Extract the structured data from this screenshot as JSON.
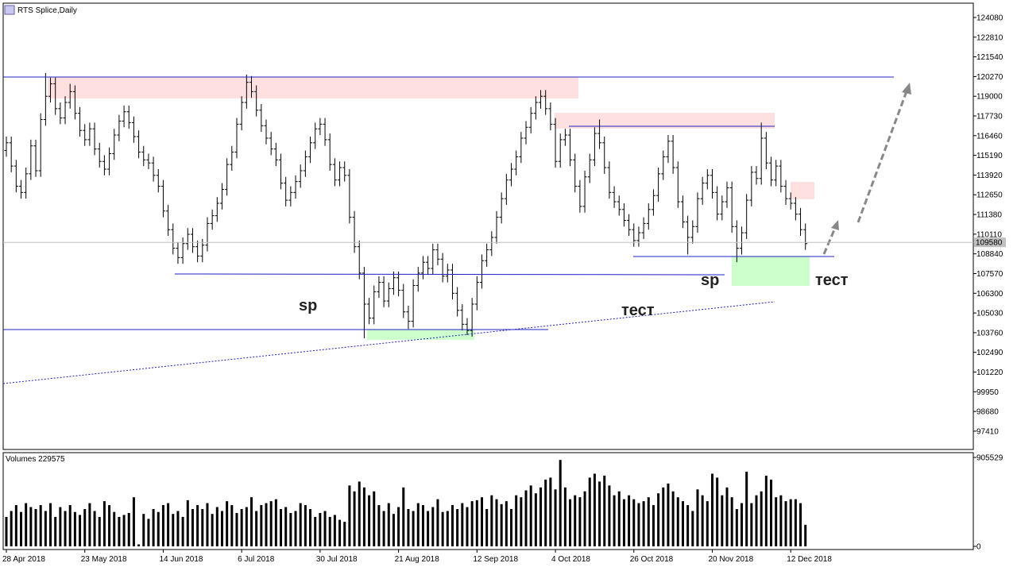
{
  "chart_data": [
    {
      "type": "ohlc",
      "title": "RTS Splice,Daily",
      "categories": [
        "28 Apr 2018",
        null,
        null,
        null,
        null,
        null,
        null,
        null,
        null,
        null,
        null,
        null,
        null,
        null,
        null,
        null,
        "23 May 2018",
        null,
        null,
        null,
        null,
        null,
        null,
        null,
        null,
        null,
        null,
        null,
        null,
        null,
        null,
        null,
        "14 Jun 2018",
        null,
        null,
        null,
        null,
        null,
        null,
        null,
        null,
        null,
        null,
        null,
        null,
        null,
        null,
        null,
        "6 Jul 2018",
        null,
        null,
        null,
        null,
        null,
        null,
        null,
        null,
        null,
        null,
        null,
        null,
        null,
        null,
        null,
        "30 Jul 2018",
        null,
        null,
        null,
        null,
        null,
        null,
        null,
        null,
        null,
        null,
        null,
        null,
        null,
        null,
        null,
        "21 Aug 2018",
        null,
        null,
        null,
        null,
        null,
        null,
        null,
        null,
        null,
        null,
        null,
        null,
        null,
        null,
        null,
        "12 Sep 2018",
        null,
        null,
        null,
        null,
        null,
        null,
        null,
        null,
        null,
        null,
        null,
        null,
        null,
        null,
        null,
        "4 Oct 2018",
        null,
        null,
        null,
        null,
        null,
        null,
        null,
        null,
        null,
        null,
        null,
        null,
        null,
        null,
        null,
        "26 Oct 2018",
        null,
        null,
        null,
        null,
        null,
        null,
        null,
        null,
        null,
        null,
        null,
        null,
        null,
        null,
        null,
        "20 Nov 2018",
        null,
        null,
        null,
        null,
        null,
        null,
        null,
        null,
        null,
        null,
        null,
        null,
        null,
        null,
        null,
        "12 Dec 2018",
        null,
        null,
        null
      ],
      "open": [
        115500,
        116000,
        114500,
        113200,
        112800,
        114000,
        115800,
        114200,
        117500,
        119000,
        119800,
        118200,
        117600,
        118600,
        119300,
        117900,
        116800,
        116200,
        116900,
        115600,
        114800,
        114300,
        115300,
        116500,
        117400,
        118000,
        117300,
        116400,
        115400,
        114900,
        114700,
        113900,
        113200,
        111600,
        110400,
        109200,
        108600,
        109500,
        110100,
        109300,
        108700,
        109400,
        110800,
        111300,
        112100,
        113000,
        114600,
        115400,
        117200,
        118600,
        119900,
        119300,
        118100,
        117100,
        116300,
        115600,
        114900,
        113400,
        112300,
        112800,
        113500,
        114200,
        115100,
        116000,
        116900,
        117200,
        116200,
        114600,
        113600,
        114400,
        113900,
        111200,
        109300,
        107600,
        105600,
        104700,
        106400,
        107000,
        105800,
        106600,
        107300,
        106500,
        105100,
        104500,
        106800,
        107600,
        108300,
        107900,
        109100,
        108500,
        107400,
        107800,
        106300,
        105200,
        104300,
        103900,
        105600,
        107000,
        108400,
        109100,
        109900,
        111200,
        112400,
        113600,
        114300,
        115100,
        116300,
        117000,
        117900,
        118600,
        119000,
        118200,
        117200,
        114800,
        116200,
        116500,
        114900,
        113200,
        111900,
        113800,
        114900,
        116600,
        116000,
        114400,
        112800,
        112200,
        111700,
        111000,
        110400,
        109700,
        110200,
        110800,
        111700,
        112600,
        114000,
        115100,
        116100,
        114400,
        112200,
        110900,
        109900,
        110600,
        112400,
        113400,
        113900,
        112800,
        111400,
        112200,
        113100,
        110600,
        109200,
        110200,
        112300,
        114100,
        113700,
        116300,
        114700,
        113600,
        114500,
        113200,
        112400,
        112100,
        111400,
        110400
      ],
      "high": [
        116400,
        116400,
        114900,
        113600,
        114400,
        116200,
        116200,
        117900,
        120500,
        120200,
        120200,
        118600,
        119000,
        119800,
        119700,
        118300,
        117200,
        117300,
        117300,
        116000,
        115200,
        115700,
        116900,
        117800,
        118400,
        118400,
        117700,
        116800,
        115800,
        115300,
        115100,
        114300,
        113600,
        112000,
        110800,
        109600,
        109900,
        110500,
        110500,
        109700,
        109800,
        111200,
        111700,
        112500,
        113400,
        115000,
        115800,
        117600,
        119000,
        120400,
        120300,
        119700,
        118500,
        117500,
        116700,
        116000,
        115300,
        113800,
        113200,
        113900,
        114600,
        115500,
        116400,
        117300,
        117600,
        117600,
        116600,
        115000,
        114800,
        114800,
        114300,
        111600,
        109700,
        108000,
        106000,
        106800,
        107400,
        107400,
        107000,
        107700,
        107700,
        106900,
        105500,
        107200,
        108000,
        108700,
        108700,
        109500,
        109500,
        108900,
        108200,
        108200,
        106700,
        105600,
        104700,
        106000,
        107400,
        108800,
        109500,
        110300,
        111600,
        112800,
        114000,
        114700,
        115500,
        116700,
        117400,
        118300,
        119000,
        119400,
        119400,
        118600,
        117600,
        116600,
        116900,
        116900,
        115300,
        113600,
        114200,
        115300,
        117000,
        117500,
        116400,
        114800,
        113200,
        112600,
        112100,
        111400,
        110800,
        110600,
        111200,
        112100,
        113000,
        114400,
        115500,
        116500,
        116500,
        114800,
        112600,
        111300,
        111000,
        112800,
        113800,
        114300,
        114300,
        113200,
        112600,
        113500,
        113500,
        111000,
        110600,
        112700,
        114500,
        114500,
        117300,
        116700,
        115100,
        114900,
        114900,
        113600,
        112800,
        112500,
        111800,
        110800
      ],
      "low": [
        115100,
        114100,
        112800,
        112400,
        112400,
        113600,
        113800,
        113800,
        117100,
        118600,
        117800,
        117200,
        117200,
        118200,
        117500,
        116400,
        115800,
        115800,
        115200,
        114400,
        113900,
        113900,
        114900,
        116100,
        117000,
        116900,
        116000,
        115000,
        114500,
        114300,
        113500,
        112800,
        111200,
        110000,
        108800,
        108200,
        108200,
        109100,
        108900,
        108300,
        108300,
        109000,
        110400,
        110900,
        111700,
        112600,
        114200,
        115000,
        116800,
        118200,
        118900,
        117700,
        116700,
        115900,
        115200,
        114500,
        113000,
        111900,
        111900,
        112400,
        113100,
        113800,
        114700,
        115600,
        116500,
        115800,
        114200,
        113200,
        113200,
        113500,
        110800,
        108900,
        107200,
        103400,
        104300,
        104300,
        106000,
        105400,
        105400,
        106200,
        106100,
        104700,
        104000,
        104100,
        106400,
        107200,
        107500,
        107500,
        108100,
        107000,
        107000,
        105900,
        104800,
        103900,
        103600,
        103500,
        105200,
        106600,
        108000,
        108700,
        109500,
        110800,
        112000,
        113200,
        113900,
        114700,
        115900,
        116600,
        117500,
        118200,
        117800,
        116800,
        114400,
        114400,
        115800,
        114500,
        112800,
        111500,
        111500,
        113400,
        114500,
        115600,
        114000,
        112400,
        111800,
        111300,
        110600,
        110000,
        109300,
        109300,
        109800,
        110400,
        111300,
        112200,
        113600,
        114700,
        114000,
        111800,
        110500,
        108800,
        109500,
        110200,
        112000,
        113000,
        112400,
        111000,
        111000,
        111800,
        110200,
        108300,
        108800,
        109800,
        111900,
        113300,
        113300,
        114300,
        113200,
        113200,
        112800,
        112000,
        111700,
        111000,
        110000,
        109100
      ],
      "close": [
        116000,
        114500,
        113200,
        112800,
        114000,
        115800,
        114200,
        117500,
        119000,
        119800,
        118200,
        117600,
        118600,
        119300,
        117900,
        116800,
        116200,
        116900,
        115600,
        114800,
        114300,
        115300,
        116500,
        117400,
        118000,
        117300,
        116400,
        115400,
        114900,
        114700,
        113900,
        113200,
        111600,
        110400,
        109200,
        108600,
        109500,
        110100,
        109300,
        108700,
        109400,
        110800,
        111300,
        112100,
        113000,
        114600,
        115400,
        117200,
        118600,
        119900,
        119300,
        118100,
        117100,
        116300,
        115600,
        114900,
        113400,
        112300,
        112800,
        113500,
        114200,
        115100,
        116000,
        116900,
        117200,
        116200,
        114600,
        113600,
        114400,
        113900,
        111200,
        109300,
        107600,
        105600,
        104700,
        106400,
        107000,
        105800,
        106600,
        107300,
        106500,
        105100,
        104500,
        106800,
        107600,
        108300,
        107900,
        109100,
        108500,
        107400,
        107800,
        106300,
        105200,
        104300,
        103900,
        105600,
        107000,
        108400,
        109100,
        109900,
        111200,
        112400,
        113600,
        114300,
        115100,
        116300,
        117000,
        117900,
        118600,
        119000,
        118200,
        117200,
        114800,
        116200,
        116500,
        114900,
        113200,
        111900,
        113800,
        114900,
        116600,
        116000,
        114400,
        112800,
        112200,
        111700,
        111000,
        110400,
        109700,
        110200,
        110800,
        111700,
        112600,
        114000,
        115100,
        116100,
        114400,
        112200,
        110900,
        109900,
        110600,
        112400,
        113400,
        113900,
        112800,
        111400,
        112200,
        113100,
        110600,
        109200,
        110200,
        112300,
        114100,
        113700,
        116300,
        114700,
        113600,
        114500,
        113200,
        112400,
        112100,
        111400,
        110400,
        109500
      ],
      "color": "#000000",
      "ylim": [
        96230,
        125000
      ],
      "yticks": [
        124080,
        122810,
        121540,
        120270,
        119000,
        117730,
        116460,
        115190,
        113920,
        112650,
        111380,
        110110,
        108840,
        107570,
        106300,
        105030,
        103760,
        102490,
        101220,
        99950,
        98680,
        97410
      ],
      "last_price": 109580,
      "annotations": [
        "sp",
        "тест",
        "sp",
        "тест"
      ]
    },
    {
      "type": "volume",
      "title": "Volumes 229575",
      "values": [
        300000,
        360000,
        420000,
        350000,
        440000,
        400000,
        380000,
        420000,
        360000,
        440000,
        300000,
        400000,
        360000,
        420000,
        350000,
        320000,
        380000,
        440000,
        360000,
        300000,
        460000,
        420000,
        350000,
        300000,
        320000,
        340000,
        500000,
        20000,
        330000,
        280000,
        380000,
        350000,
        420000,
        440000,
        330000,
        360000,
        300000,
        470000,
        380000,
        420000,
        380000,
        440000,
        330000,
        400000,
        360000,
        460000,
        420000,
        340000,
        380000,
        400000,
        500000,
        360000,
        420000,
        440000,
        460000,
        480000,
        380000,
        400000,
        340000,
        360000,
        440000,
        420000,
        380000,
        300000,
        340000,
        360000,
        300000,
        320000,
        270000,
        250000,
        620000,
        560000,
        660000,
        600000,
        520000,
        560000,
        420000,
        360000,
        440000,
        330000,
        400000,
        600000,
        380000,
        360000,
        440000,
        420000,
        360000,
        400000,
        480000,
        350000,
        360000,
        420000,
        380000,
        440000,
        400000,
        460000,
        470000,
        500000,
        380000,
        520000,
        480000,
        430000,
        460000,
        380000,
        520000,
        500000,
        570000,
        620000,
        540000,
        600000,
        680000,
        700000,
        580000,
        880000,
        600000,
        480000,
        520000,
        500000,
        560000,
        700000,
        740000,
        660000,
        720000,
        620000,
        520000,
        560000,
        480000,
        520000,
        480000,
        440000,
        460000,
        500000,
        420000,
        540000,
        600000,
        640000,
        560000,
        500000,
        460000,
        420000,
        360000,
        580000,
        520000,
        460000,
        740000,
        700000,
        520000,
        600000,
        500000,
        380000,
        440000,
        760000,
        440000,
        520000,
        560000,
        720000,
        680000,
        500000,
        520000,
        460000,
        480000,
        480000,
        440000,
        220000
      ],
      "color": "#000000",
      "ylim": [
        0,
        960000
      ],
      "yticks": [
        905529,
        0
      ]
    }
  ]
}
